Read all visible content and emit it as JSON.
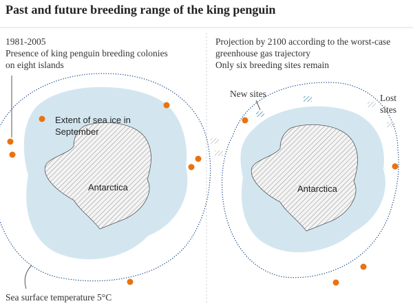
{
  "title": "Past and future breeding range of the king penguin",
  "panels": [
    {
      "period": "1981-2005",
      "description": "Presence of king penguin breeding colonies on eight islands",
      "sea_ice_label": "Extent of sea ice in September",
      "continent_label": "Antarctica",
      "temperature_label": "Sea surface temperature 5°C"
    },
    {
      "description": "Projection by 2100 according to the worst-case greenhouse gas trajectory",
      "subdescription": "Only six breeding sites remain",
      "new_sites_label": "New sites",
      "lost_sites_label": "Lost sites",
      "continent_label": "Antarctica"
    }
  ]
}
